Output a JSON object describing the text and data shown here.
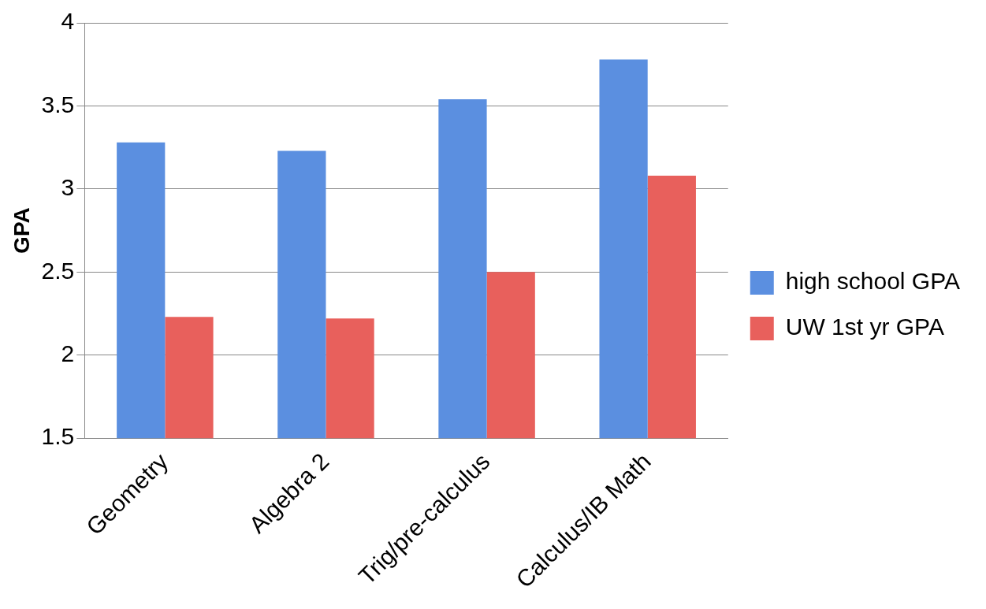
{
  "chart_data": {
    "type": "bar",
    "ylabel": "GPA",
    "categories": [
      "Geometry",
      "Algebra 2",
      "Trig/pre-calculus",
      "Calculus/IB Math"
    ],
    "series": [
      {
        "name": "high school GPA",
        "color": "#5b8fe0",
        "values": [
          3.28,
          3.23,
          3.54,
          3.78
        ]
      },
      {
        "name": "UW 1st yr GPA",
        "color": "#e8605c",
        "values": [
          2.23,
          2.22,
          2.5,
          3.08
        ]
      }
    ],
    "ylim": [
      1.5,
      4
    ],
    "yticks": [
      1.5,
      2,
      2.5,
      3,
      3.5,
      4
    ],
    "grid": "y",
    "legend": "right"
  }
}
